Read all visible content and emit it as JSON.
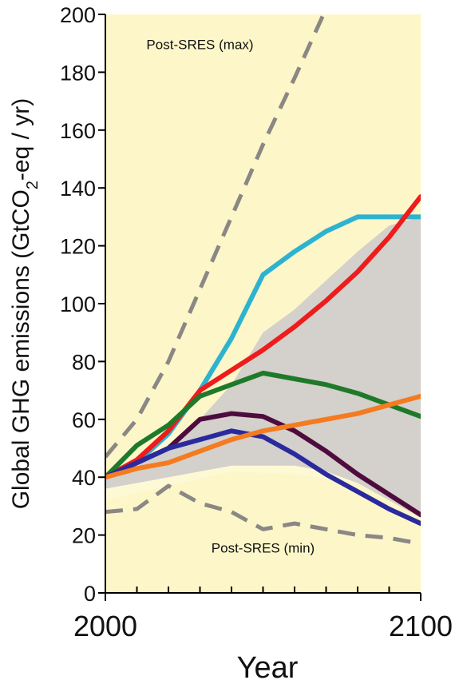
{
  "chart_data": {
    "type": "line",
    "xlabel": "Year",
    "ylabel_parts": [
      "Global GHG emissions (GtCO",
      "2",
      "-eq / yr)"
    ],
    "xlim": [
      2000,
      2100
    ],
    "ylim": [
      0,
      200
    ],
    "x_ticks": [
      2000,
      2100
    ],
    "y_ticks": [
      0,
      20,
      40,
      60,
      80,
      100,
      120,
      140,
      160,
      180,
      200
    ],
    "grid": false,
    "background_color": "#fdf6c8",
    "annotations": [
      {
        "text": "Post-SRES (max)",
        "x": 2030,
        "y": 188
      },
      {
        "text": "Post-SRES (min)",
        "x": 2050,
        "y": 14
      }
    ],
    "range_band": {
      "color": "#d4d0cb",
      "light_color": "#fef9d5",
      "light_upper": [
        [
          2000,
          40
        ],
        [
          2020,
          54
        ],
        [
          2040,
          64
        ],
        [
          2060,
          78
        ],
        [
          2080,
          100
        ],
        [
          2100,
          128
        ]
      ],
      "light_lower": [
        [
          2000,
          32
        ],
        [
          2020,
          37
        ],
        [
          2040,
          42
        ],
        [
          2060,
          41
        ],
        [
          2080,
          38
        ],
        [
          2100,
          27
        ]
      ],
      "upper": [
        [
          2000,
          40
        ],
        [
          2010,
          44
        ],
        [
          2020,
          50
        ],
        [
          2030,
          60
        ],
        [
          2040,
          72
        ],
        [
          2050,
          90
        ],
        [
          2060,
          98
        ],
        [
          2070,
          108
        ],
        [
          2080,
          118
        ],
        [
          2090,
          127
        ],
        [
          2100,
          130
        ]
      ],
      "lower": [
        [
          2000,
          36
        ],
        [
          2010,
          38
        ],
        [
          2020,
          40
        ],
        [
          2030,
          42
        ],
        [
          2040,
          44
        ],
        [
          2050,
          44
        ],
        [
          2060,
          44
        ],
        [
          2070,
          42
        ],
        [
          2080,
          38
        ],
        [
          2090,
          32
        ],
        [
          2100,
          26
        ]
      ]
    },
    "series": [
      {
        "color": "#8a8785",
        "dashed": true,
        "points": [
          [
            2000,
            47
          ],
          [
            2010,
            60
          ],
          [
            2020,
            80
          ],
          [
            2030,
            105
          ],
          [
            2040,
            130
          ],
          [
            2050,
            155
          ],
          [
            2060,
            178
          ],
          [
            2070,
            202
          ]
        ]
      },
      {
        "color": "#8a8785",
        "dashed": true,
        "points": [
          [
            2000,
            28
          ],
          [
            2010,
            29
          ],
          [
            2020,
            37
          ],
          [
            2030,
            31
          ],
          [
            2040,
            28
          ],
          [
            2050,
            22
          ],
          [
            2060,
            24
          ],
          [
            2070,
            22
          ],
          [
            2080,
            20
          ],
          [
            2090,
            19
          ],
          [
            2100,
            17
          ]
        ]
      },
      {
        "color": "#2db3d0",
        "dashed": false,
        "points": [
          [
            2000,
            40
          ],
          [
            2010,
            45
          ],
          [
            2020,
            55
          ],
          [
            2030,
            70
          ],
          [
            2040,
            88
          ],
          [
            2050,
            110
          ],
          [
            2060,
            118
          ],
          [
            2070,
            125
          ],
          [
            2080,
            130
          ],
          [
            2090,
            130
          ],
          [
            2100,
            130
          ]
        ]
      },
      {
        "color": "#ee1c1c",
        "dashed": false,
        "points": [
          [
            2000,
            40
          ],
          [
            2010,
            46
          ],
          [
            2020,
            56
          ],
          [
            2030,
            70
          ],
          [
            2040,
            77
          ],
          [
            2050,
            84
          ],
          [
            2060,
            92
          ],
          [
            2070,
            101
          ],
          [
            2080,
            111
          ],
          [
            2090,
            123
          ],
          [
            2100,
            137
          ]
        ]
      },
      {
        "color": "#1e7a2a",
        "dashed": false,
        "points": [
          [
            2000,
            40
          ],
          [
            2010,
            51
          ],
          [
            2020,
            58
          ],
          [
            2030,
            68
          ],
          [
            2040,
            72
          ],
          [
            2050,
            76
          ],
          [
            2060,
            74
          ],
          [
            2070,
            72
          ],
          [
            2080,
            69
          ],
          [
            2090,
            65
          ],
          [
            2100,
            61
          ]
        ]
      },
      {
        "color": "#4e0c3e",
        "dashed": false,
        "points": [
          [
            2000,
            40
          ],
          [
            2010,
            45
          ],
          [
            2020,
            50
          ],
          [
            2030,
            60
          ],
          [
            2040,
            62
          ],
          [
            2050,
            61
          ],
          [
            2060,
            56
          ],
          [
            2070,
            49
          ],
          [
            2080,
            41
          ],
          [
            2090,
            34
          ],
          [
            2100,
            27
          ]
        ]
      },
      {
        "color": "#2a2a9e",
        "dashed": false,
        "points": [
          [
            2000,
            40
          ],
          [
            2010,
            45
          ],
          [
            2020,
            50
          ],
          [
            2030,
            53
          ],
          [
            2040,
            56
          ],
          [
            2050,
            54
          ],
          [
            2060,
            48
          ],
          [
            2070,
            41
          ],
          [
            2080,
            35
          ],
          [
            2090,
            29
          ],
          [
            2100,
            24
          ]
        ]
      },
      {
        "color": "#f47b20",
        "dashed": false,
        "points": [
          [
            2000,
            40
          ],
          [
            2010,
            43
          ],
          [
            2020,
            45
          ],
          [
            2030,
            49
          ],
          [
            2040,
            53
          ],
          [
            2050,
            56
          ],
          [
            2060,
            58
          ],
          [
            2070,
            60
          ],
          [
            2080,
            62
          ],
          [
            2090,
            65
          ],
          [
            2100,
            68
          ]
        ]
      }
    ]
  }
}
